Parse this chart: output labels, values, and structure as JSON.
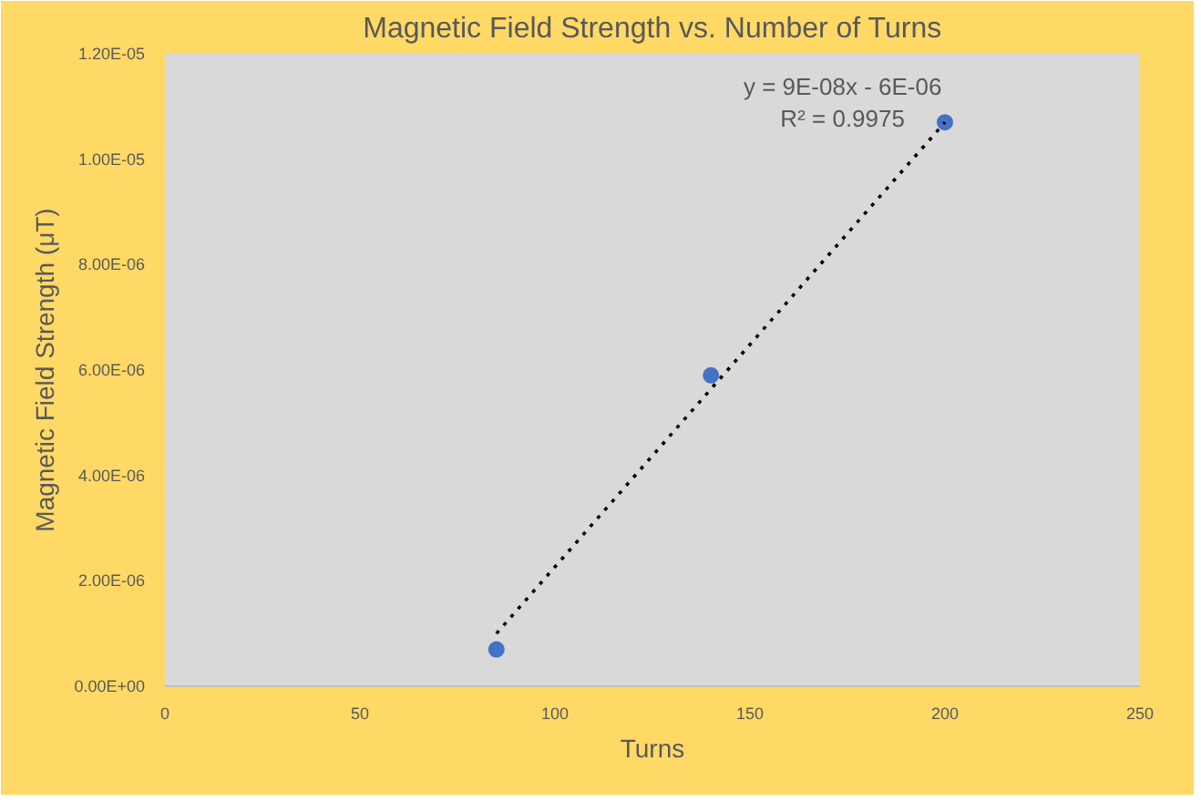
{
  "chart_data": {
    "type": "scatter",
    "title": "Magnetic Field Strength vs. Number of Turns",
    "xlabel": "Turns",
    "ylabel": "Magnetic Field Strength (μT)",
    "grid": false,
    "series": [
      {
        "color": "#4472c4",
        "marker": "circle",
        "x": [
          85,
          140,
          200
        ],
        "values": [
          7e-07,
          5.9e-06,
          1.07e-05
        ]
      },
      {
        "type": "line",
        "color": "#000000",
        "marker": "none",
        "line_style": "dotted",
        "x": [
          85,
          200
        ],
        "values": [
          1e-06,
          1.07e-05
        ]
      }
    ],
    "xlim": [
      0,
      250
    ],
    "xticks": [
      0,
      50,
      100,
      150,
      200,
      250
    ],
    "ylim": [
      0,
      1.2e-05
    ],
    "yticks": [
      {
        "value": 0,
        "label": "0.00E+00"
      },
      {
        "value": 2e-06,
        "label": "2.00E-06"
      },
      {
        "value": 4e-06,
        "label": "4.00E-06"
      },
      {
        "value": 6e-06,
        "label": "6.00E-06"
      },
      {
        "value": 8e-06,
        "label": "8.00E-06"
      },
      {
        "value": 1e-05,
        "label": "1.00E-05"
      },
      {
        "value": 1.2e-05,
        "label": "1.20E-05"
      }
    ],
    "annotations": [
      "y = 9E-08x - 6E-06",
      "R² = 0.9975"
    ]
  }
}
